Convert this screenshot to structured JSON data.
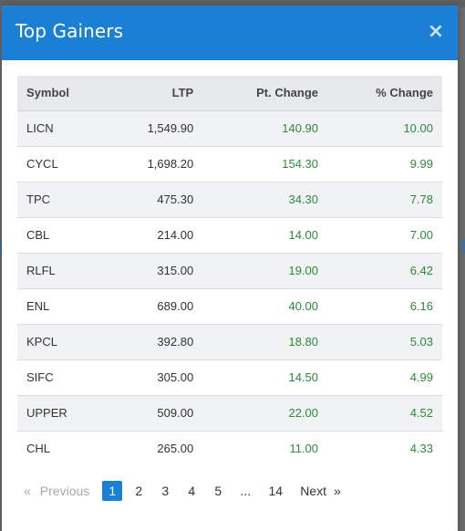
{
  "modal": {
    "title": "Top Gainers",
    "close_symbol": "×"
  },
  "table": {
    "headers": [
      "Symbol",
      "LTP",
      "Pt. Change",
      "% Change"
    ],
    "rows": [
      {
        "symbol": "LICN",
        "ltp": "1,549.90",
        "pt_change": "140.90",
        "pct_change": "10.00"
      },
      {
        "symbol": "CYCL",
        "ltp": "1,698.20",
        "pt_change": "154.30",
        "pct_change": "9.99"
      },
      {
        "symbol": "TPC",
        "ltp": "475.30",
        "pt_change": "34.30",
        "pct_change": "7.78"
      },
      {
        "symbol": "CBL",
        "ltp": "214.00",
        "pt_change": "14.00",
        "pct_change": "7.00"
      },
      {
        "symbol": "RLFL",
        "ltp": "315.00",
        "pt_change": "19.00",
        "pct_change": "6.42"
      },
      {
        "symbol": "ENL",
        "ltp": "689.00",
        "pt_change": "40.00",
        "pct_change": "6.16"
      },
      {
        "symbol": "KPCL",
        "ltp": "392.80",
        "pt_change": "18.80",
        "pct_change": "5.03"
      },
      {
        "symbol": "SIFC",
        "ltp": "305.00",
        "pt_change": "14.50",
        "pct_change": "4.99"
      },
      {
        "symbol": "UPPER",
        "ltp": "509.00",
        "pt_change": "22.00",
        "pct_change": "4.52"
      },
      {
        "symbol": "CHL",
        "ltp": "265.00",
        "pt_change": "11.00",
        "pct_change": "4.33"
      }
    ]
  },
  "pagination": {
    "prev_arrow": "«",
    "prev_label": "Previous",
    "pages": [
      "1",
      "2",
      "3",
      "4",
      "5"
    ],
    "active_page": "1",
    "ellipsis": "...",
    "last_page": "14",
    "next_label": "Next",
    "next_arrow": "»"
  },
  "colors": {
    "header_bg": "#1b7fd6",
    "positive": "#2c8a3a",
    "active_page": "#1b7fd6"
  }
}
